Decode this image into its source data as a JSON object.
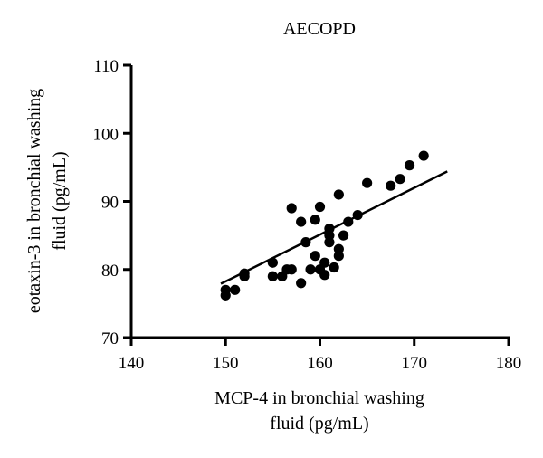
{
  "chart_data": {
    "type": "scatter",
    "title": "AECOPD",
    "xlabel_lines": [
      "MCP-4 in bronchial washing",
      "fluid (pg/mL)"
    ],
    "ylabel_lines": [
      "eotaxin-3 in bronchial washing",
      "fluid (pg/mL)"
    ],
    "xlim": [
      140,
      180
    ],
    "ylim": [
      70,
      110
    ],
    "xticks": [
      140,
      150,
      160,
      170,
      180
    ],
    "yticks": [
      70,
      80,
      90,
      100,
      110
    ],
    "grid": false,
    "legend": "none",
    "points": [
      [
        150,
        76.2
      ],
      [
        150,
        77
      ],
      [
        151,
        77
      ],
      [
        152,
        79
      ],
      [
        152,
        79.4
      ],
      [
        155,
        79
      ],
      [
        155,
        81
      ],
      [
        156,
        79
      ],
      [
        156.5,
        80
      ],
      [
        157,
        80
      ],
      [
        157,
        89
      ],
      [
        158,
        87
      ],
      [
        158,
        78
      ],
      [
        158.5,
        84
      ],
      [
        159,
        80
      ],
      [
        159.5,
        87.3
      ],
      [
        159.5,
        82
      ],
      [
        160,
        80
      ],
      [
        160,
        89.2
      ],
      [
        160.5,
        79.2
      ],
      [
        160.5,
        81
      ],
      [
        161,
        84
      ],
      [
        161,
        85
      ],
      [
        161,
        86
      ],
      [
        161.5,
        80.3
      ],
      [
        162,
        83
      ],
      [
        162,
        82
      ],
      [
        162,
        91
      ],
      [
        162.5,
        85
      ],
      [
        163,
        87
      ],
      [
        164,
        88
      ],
      [
        165,
        92.7
      ],
      [
        167.5,
        92.3
      ],
      [
        168.5,
        93.3
      ],
      [
        169.5,
        95.3
      ],
      [
        171,
        96.7
      ]
    ],
    "trendline": {
      "x": [
        149.5,
        173.5
      ],
      "y": [
        77.9,
        94.4
      ]
    },
    "colors": {
      "points": "#000000",
      "line": "#000000",
      "axes": "#000000"
    }
  }
}
